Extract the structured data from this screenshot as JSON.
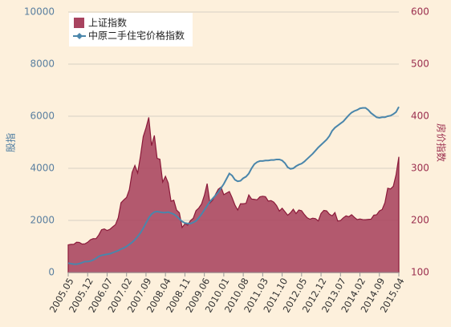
{
  "chart_data": {
    "type": "area",
    "y_label": "股指",
    "y2_label": "房价指数",
    "categories": [
      "2005.05",
      null,
      null,
      null,
      null,
      null,
      null,
      "2005.12",
      null,
      null,
      null,
      null,
      null,
      null,
      "2006.07",
      null,
      null,
      null,
      null,
      null,
      null,
      "2007.02",
      null,
      null,
      null,
      null,
      null,
      null,
      "2007.09",
      null,
      null,
      null,
      null,
      null,
      null,
      "2008.04",
      null,
      null,
      null,
      null,
      null,
      null,
      "2008.11",
      null,
      null,
      null,
      null,
      null,
      null,
      "2009.06",
      null,
      null,
      null,
      null,
      null,
      null,
      "2010.01",
      null,
      null,
      null,
      null,
      null,
      null,
      "2010.08",
      null,
      null,
      null,
      null,
      null,
      null,
      "2011.03",
      null,
      null,
      null,
      null,
      null,
      null,
      "2011.10",
      null,
      null,
      null,
      null,
      null,
      null,
      "2012.05",
      null,
      null,
      null,
      null,
      null,
      null,
      "2012.12",
      null,
      null,
      null,
      null,
      null,
      null,
      "2013.07",
      null,
      null,
      null,
      null,
      null,
      null,
      "2014.02",
      null,
      null,
      null,
      null,
      null,
      null,
      "2014.09",
      null,
      null,
      null,
      null,
      null,
      null,
      "2015.04"
    ],
    "series": [
      {
        "name": "上证指数",
        "type": "area",
        "color": "#a8435f",
        "values": [
          1060,
          1080,
          1083,
          1162,
          1155,
          1092,
          1099,
          1161,
          1258,
          1299,
          1298,
          1440,
          1641,
          1672,
          1612,
          1658,
          1752,
          1837,
          2099,
          2675,
          2786,
          2881,
          3183,
          3841,
          4109,
          3820,
          4471,
          5218,
          5552,
          5954,
          4871,
          5262,
          4383,
          4348,
          3473,
          3693,
          3433,
          2736,
          2775,
          2397,
          2293,
          1729,
          1871,
          1821,
          1991,
          2082,
          2373,
          2477,
          2633,
          2959,
          3412,
          2667,
          2779,
          2996,
          3195,
          3277,
          2989,
          3051,
          3110,
          2871,
          2592,
          2398,
          2638,
          2639,
          2656,
          2979,
          2820,
          2808,
          2791,
          2905,
          2928,
          2911,
          2743,
          2762,
          2701,
          2568,
          2359,
          2468,
          2333,
          2199,
          2292,
          2428,
          2263,
          2397,
          2373,
          2225,
          2103,
          2047,
          2086,
          2069,
          1980,
          2269,
          2385,
          2366,
          2237,
          2178,
          2301,
          1979,
          1994,
          2098,
          2175,
          2141,
          2220,
          2116,
          2033,
          2056,
          2033,
          2026,
          2039,
          2048,
          2201,
          2217,
          2364,
          2420,
          2683,
          3235,
          3210,
          3310,
          3748,
          4441
        ]
      },
      {
        "name": "中原二手住宅价格指数",
        "type": "line",
        "axis": "y2",
        "color": "#4a86ab",
        "values": [
          118,
          117,
          116,
          116,
          117,
          119,
          121,
          121,
          122,
          124,
          127,
          131,
          133,
          134,
          135,
          136,
          138,
          140,
          142,
          145,
          147,
          150,
          154,
          158,
          163,
          169,
          176,
          185,
          195,
          205,
          212,
          216,
          217,
          216,
          215,
          215,
          216,
          214,
          212,
          208,
          203,
          198,
          195,
          194,
          194,
          196,
          199,
          205,
          212,
          220,
          228,
          236,
          242,
          248,
          254,
          262,
          270,
          280,
          290,
          286,
          278,
          275,
          276,
          281,
          284,
          290,
          300,
          308,
          312,
          314,
          314,
          315,
          315,
          316,
          316,
          317,
          317,
          315,
          310,
          302,
          299,
          300,
          304,
          307,
          309,
          313,
          318,
          323,
          328,
          334,
          340,
          345,
          350,
          355,
          362,
          372,
          378,
          382,
          386,
          390,
          396,
          402,
          407,
          410,
          412,
          415,
          416,
          416,
          412,
          406,
          402,
          398,
          397,
          398,
          398,
          400,
          401,
          404,
          408,
          418
        ]
      }
    ],
    "ylim": [
      0,
      10000
    ],
    "yticks": [
      0,
      2000,
      4000,
      6000,
      8000,
      10000
    ],
    "y2lim": [
      100,
      600
    ],
    "y2ticks": [
      100,
      200,
      300,
      400,
      500,
      600
    ],
    "grid": true
  }
}
